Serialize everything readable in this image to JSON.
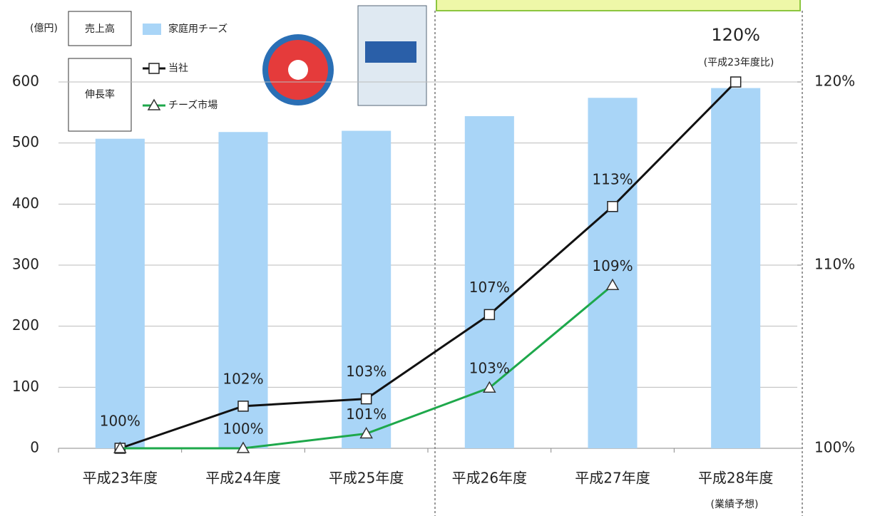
{
  "chart_data": {
    "type": "bar-line",
    "y_unit_label": "(億円)",
    "legend_groups": [
      "売上高",
      "伸長率"
    ],
    "categories": [
      "平成23年度",
      "平成24年度",
      "平成25年度",
      "平成26年度",
      "平成27年度",
      "平成28年度"
    ],
    "category_note": "(業績予想)",
    "ylim": [
      0,
      600
    ],
    "yticks": [
      0,
      100,
      200,
      300,
      400,
      500,
      600
    ],
    "y2lim": [
      100,
      120
    ],
    "y2ticks": [
      {
        "value": 100,
        "label": "100%"
      },
      {
        "value": 110,
        "label": "110%"
      },
      {
        "value": 120,
        "label": "120%"
      }
    ],
    "grid": true,
    "series": [
      {
        "name": "家庭用チーズ",
        "kind": "bar",
        "color": "#a9d5f7",
        "values": [
          507,
          518,
          520,
          544,
          574,
          590
        ]
      },
      {
        "name": "当社",
        "kind": "line",
        "marker": "square",
        "axis": "y2",
        "color": "#111111",
        "values": [
          100,
          102.3,
          102.7,
          107.3,
          113.2,
          120
        ],
        "value_labels": [
          "100%",
          "102%",
          "103%",
          "107%",
          "113%",
          "120%"
        ]
      },
      {
        "name": "チーズ市場",
        "kind": "line",
        "marker": "triangle",
        "axis": "y2",
        "color": "#1ea84b",
        "values": [
          100,
          100,
          100.8,
          103.3,
          108.9,
          null
        ],
        "value_labels": [
          null,
          "100%",
          "101%",
          "103%",
          "109%",
          null
        ]
      }
    ],
    "annotation": "(平成23年度比)"
  }
}
